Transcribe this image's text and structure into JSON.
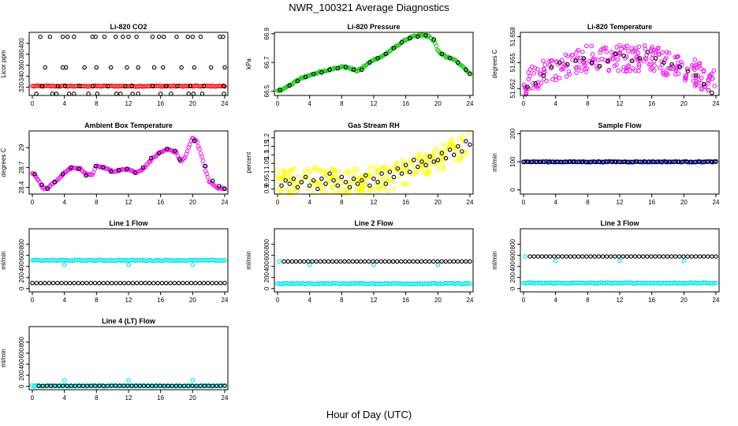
{
  "figure": {
    "title": "NWR_100321  Average Diagnostics",
    "xlabel": "Hour of Day (UTC)"
  },
  "chart_data": [
    {
      "type": "scatter",
      "title": "Li-820 CO2",
      "ylabel": "Licor ppm",
      "xlim": [
        0,
        24
      ],
      "ylim": [
        305,
        420
      ],
      "xticks": [
        0,
        4,
        8,
        12,
        16,
        20,
        24
      ],
      "yticks": [
        320,
        340,
        360,
        380,
        400
      ],
      "series": [
        {
          "color": "#ff0000",
          "style": "band",
          "x": [
            0,
            24
          ],
          "y": [
            322,
            322
          ]
        },
        {
          "color": "#000000",
          "style": "points",
          "x": [
            1.0,
            2.2,
            3.8,
            4.4,
            5.2,
            7.5,
            7.9,
            9.0,
            10.4,
            11.3,
            12.0,
            13.0,
            15.0,
            15.8,
            16.4,
            18.0,
            19.4,
            20.0,
            21.0,
            23.4,
            23.8
          ],
          "y": [
            412,
            412,
            412,
            412,
            412,
            412,
            412,
            412,
            412,
            412,
            412,
            412,
            412,
            412,
            412,
            412,
            412,
            412,
            412,
            412,
            412
          ]
        },
        {
          "color": "#000000",
          "style": "points",
          "x": [
            1.6,
            3.8,
            4.2,
            6.5,
            8.0,
            9.8,
            11.8,
            13.2,
            15.2,
            16.3,
            18.6,
            20.2,
            22.3,
            24.0
          ],
          "y": [
            356,
            356,
            356,
            356,
            356,
            356,
            356,
            356,
            356,
            356,
            356,
            356,
            356,
            356
          ]
        },
        {
          "color": "#000000",
          "style": "points",
          "x": [
            1.2,
            3.2,
            4.1,
            5.9,
            7.6,
            9.4,
            11.6,
            12.4,
            15.0,
            16.7,
            18.1,
            19.7,
            21.4,
            23.9
          ],
          "y": [
            322,
            322,
            322,
            322,
            322,
            322,
            322,
            322,
            322,
            322,
            322,
            322,
            322,
            322
          ]
        },
        {
          "color": "#000000",
          "style": "points",
          "x": [
            0.5,
            2.5,
            3.0,
            4.6,
            5.2,
            7.0,
            8.1,
            10.5,
            11.0,
            12.5,
            13.2,
            16.0,
            17.3,
            19.5,
            20.1,
            21.2,
            23.9
          ],
          "y": [
            308,
            308,
            308,
            308,
            308,
            308,
            308,
            308,
            308,
            308,
            308,
            308,
            308,
            308,
            308,
            308,
            308
          ]
        }
      ]
    },
    {
      "type": "scatter",
      "title": "Li-820 Pressure",
      "ylabel": "kPa",
      "xlim": [
        0,
        24
      ],
      "ylim": [
        66.47,
        66.91
      ],
      "xticks": [
        0,
        4,
        8,
        12,
        16,
        20,
        24
      ],
      "yticks": [
        66.5,
        66.7,
        66.9
      ],
      "series": [
        {
          "color": "#22cc22",
          "style": "curve",
          "x": [
            0,
            1,
            2,
            3,
            4,
            5,
            6,
            7,
            8,
            9,
            10,
            11,
            12,
            13,
            14,
            15,
            16,
            17,
            18,
            19,
            19.6,
            20,
            21,
            22,
            23,
            24
          ],
          "y": [
            66.5,
            66.52,
            66.56,
            66.59,
            66.61,
            66.63,
            66.64,
            66.66,
            66.67,
            66.66,
            66.64,
            66.68,
            66.72,
            66.74,
            66.78,
            66.82,
            66.86,
            66.88,
            66.89,
            66.88,
            66.84,
            66.78,
            66.74,
            66.72,
            66.68,
            66.62
          ]
        },
        {
          "color": "#000000",
          "style": "points",
          "x": [
            0.3,
            1.5,
            2.5,
            3.5,
            4.5,
            5.5,
            6.5,
            7.5,
            8.5,
            9.5,
            10.5,
            11.5,
            12.5,
            13.5,
            14.5,
            15.5,
            16.5,
            17.5,
            18.5,
            19.5,
            20.5,
            21.5,
            22.5,
            23.5,
            24.0
          ],
          "y": [
            66.51,
            66.54,
            66.57,
            66.6,
            66.62,
            66.63,
            66.65,
            66.66,
            66.67,
            66.65,
            66.65,
            66.7,
            66.73,
            66.76,
            66.8,
            66.84,
            66.87,
            66.88,
            66.89,
            66.86,
            66.76,
            66.73,
            66.7,
            66.65,
            66.62
          ]
        }
      ]
    },
    {
      "type": "scatter",
      "title": "Li-820 Temperature",
      "ylabel": "degrees C",
      "xlim": [
        0,
        24
      ],
      "ylim": [
        51.6512,
        51.6585
      ],
      "xticks": [
        0,
        4,
        8,
        12,
        16,
        20,
        24
      ],
      "yticks": [
        51.652,
        51.655,
        51.658
      ],
      "series": [
        {
          "color": "#ee22ee",
          "style": "noise",
          "x": [
            0,
            4,
            8,
            12,
            16,
            20,
            24
          ],
          "y": [
            51.6525,
            51.6545,
            51.6555,
            51.6555,
            51.6555,
            51.6545,
            51.6525
          ]
        },
        {
          "color": "#000000",
          "style": "points",
          "x": [
            0.5,
            1.5,
            2.5,
            3.5,
            4.5,
            5.5,
            6.5,
            7.5,
            8.5,
            9.5,
            10.5,
            11.5,
            12.5,
            13.5,
            14.5,
            15.5,
            16.5,
            17.5,
            18.5,
            19.5,
            20.5,
            21.5,
            22.5,
            23.5
          ],
          "y": [
            51.6522,
            51.6526,
            51.6535,
            51.6545,
            51.655,
            51.6548,
            51.6552,
            51.6555,
            51.655,
            51.6546,
            51.6552,
            51.656,
            51.6558,
            51.6552,
            51.6555,
            51.6562,
            51.6555,
            51.655,
            51.6548,
            51.6545,
            51.654,
            51.6535,
            51.6525,
            51.6515
          ]
        }
      ]
    },
    {
      "type": "scatter",
      "title": "Ambient Box Temperature",
      "ylabel": "degrees C",
      "xlim": [
        0,
        24
      ],
      "ylim": [
        28.3,
        29.25
      ],
      "xticks": [
        0,
        4,
        8,
        12,
        16,
        20,
        24
      ],
      "yticks": [
        28.4,
        28.7,
        29.0
      ],
      "series": [
        {
          "color": "#ee22ee",
          "style": "curve",
          "x": [
            0,
            0.5,
            1,
            1.5,
            2,
            3,
            4,
            5,
            6,
            7,
            7.5,
            8,
            9,
            10,
            11,
            12,
            13,
            14,
            15,
            16,
            17,
            18,
            18.5,
            19,
            19.5,
            20,
            20.5,
            21,
            21.5,
            22,
            23,
            24
          ],
          "y": [
            28.62,
            28.56,
            28.45,
            28.38,
            28.4,
            28.5,
            28.62,
            28.7,
            28.68,
            28.58,
            28.6,
            28.72,
            28.7,
            28.64,
            28.66,
            28.68,
            28.62,
            28.7,
            28.84,
            28.92,
            28.98,
            28.92,
            28.78,
            28.84,
            29.0,
            29.15,
            29.1,
            28.92,
            28.7,
            28.5,
            28.4,
            28.38
          ]
        },
        {
          "color": "#000000",
          "style": "points",
          "x": [
            0.3,
            1.2,
            1.9,
            2.8,
            3.8,
            4.8,
            5.8,
            6.7,
            7.9,
            8.8,
            9.8,
            10.8,
            11.8,
            12.8,
            13.8,
            14.8,
            15.8,
            16.8,
            17.8,
            18.4,
            20.2,
            21.6,
            22.5,
            23.3,
            24.0
          ],
          "y": [
            28.6,
            28.44,
            28.38,
            28.48,
            28.6,
            28.7,
            28.68,
            28.58,
            28.72,
            28.7,
            28.64,
            28.66,
            28.68,
            28.62,
            28.7,
            28.84,
            28.92,
            28.98,
            28.95,
            28.82,
            29.1,
            28.72,
            28.5,
            28.42,
            28.38
          ]
        }
      ]
    },
    {
      "type": "scatter",
      "title": "Gas Stream RH",
      "ylabel": "percent",
      "xlim": [
        0,
        24
      ],
      "ylim": [
        0.87,
        1.24
      ],
      "xticks": [
        0,
        4,
        8,
        12,
        16,
        20,
        24
      ],
      "yticks": [
        0.9,
        0.95,
        1.0,
        1.05,
        1.1,
        1.15,
        1.2
      ],
      "series": [
        {
          "color": "#ffff00",
          "style": "noise",
          "x": [
            0,
            4,
            8,
            12,
            14,
            16,
            18,
            20,
            22,
            24
          ],
          "y": [
            0.94,
            0.95,
            0.94,
            0.95,
            0.97,
            1.0,
            1.04,
            1.08,
            1.12,
            1.16
          ]
        },
        {
          "color": "#000000",
          "style": "points",
          "x": [
            0.5,
            1.0,
            1.5,
            2.0,
            2.5,
            3.0,
            3.5,
            4.0,
            4.5,
            5.0,
            5.5,
            6.0,
            6.5,
            7.0,
            7.5,
            8.0,
            8.5,
            9.0,
            9.5,
            10.0,
            10.5,
            11.0,
            11.5,
            12.0,
            12.5,
            13.0,
            13.5,
            14.0,
            14.5,
            15.0,
            15.5,
            16.0,
            16.5,
            17.0,
            17.5,
            18.0,
            18.5,
            19.0,
            19.5,
            20.0,
            20.5,
            21.0,
            21.5,
            22.0,
            22.5,
            23.0,
            23.5,
            24.0
          ],
          "y": [
            0.92,
            0.95,
            0.93,
            0.96,
            0.91,
            0.94,
            0.97,
            0.92,
            0.95,
            0.9,
            0.96,
            0.93,
            0.99,
            0.95,
            0.92,
            0.97,
            0.94,
            0.91,
            0.96,
            0.93,
            0.95,
            0.98,
            0.92,
            0.96,
            0.94,
            0.99,
            0.93,
            1.0,
            0.97,
            1.02,
            0.99,
            1.04,
            1.0,
            1.07,
            1.03,
            1.06,
            1.04,
            1.09,
            1.06,
            1.07,
            1.11,
            1.08,
            1.13,
            1.1,
            1.15,
            1.12,
            1.18,
            1.16
          ]
        }
      ]
    },
    {
      "type": "scatter",
      "title": "Sample Flow",
      "ylabel": "ml/min",
      "xlim": [
        0,
        24
      ],
      "ylim": [
        -15,
        210
      ],
      "xticks": [
        0,
        4,
        8,
        12,
        16,
        20,
        24
      ],
      "yticks": [
        0,
        100,
        200
      ],
      "series": [
        {
          "color": "#0000cc",
          "style": "band",
          "x": [
            0,
            24
          ],
          "y": [
            100,
            100
          ]
        },
        {
          "color": "#000000",
          "style": "points",
          "x": [
            0,
            24
          ],
          "y": [
            100,
            100
          ]
        }
      ]
    },
    {
      "type": "scatter",
      "title": "Line 1 Flow",
      "ylabel": "ml/min",
      "xlim": [
        0,
        24
      ],
      "ylim": [
        -60,
        1080
      ],
      "xticks": [
        0,
        4,
        8,
        12,
        16,
        20,
        24
      ],
      "yticks": [
        0,
        200,
        400,
        600,
        800
      ],
      "series": [
        {
          "color": "#00e5e5",
          "style": "band",
          "x": [
            0,
            24
          ],
          "y": [
            510,
            510
          ]
        },
        {
          "color": "#00e5e5",
          "style": "points",
          "x": [
            4,
            12,
            20
          ],
          "y": [
            430,
            430,
            430
          ]
        },
        {
          "color": "#000000",
          "style": "points",
          "x": [
            0,
            24
          ],
          "y": [
            100,
            100
          ]
        }
      ]
    },
    {
      "type": "scatter",
      "title": "Line 2 Flow",
      "ylabel": "ml/min",
      "xlim": [
        0,
        24
      ],
      "ylim": [
        -60,
        1080
      ],
      "xticks": [
        0,
        4,
        8,
        12,
        16,
        20,
        24
      ],
      "yticks": [
        0,
        200,
        400,
        600,
        800
      ],
      "series": [
        {
          "color": "#00e5e5",
          "style": "band",
          "x": [
            0,
            24
          ],
          "y": [
            90,
            90
          ]
        },
        {
          "color": "#00e5e5",
          "style": "points",
          "x": [
            0.2,
            4,
            12,
            20
          ],
          "y": [
            490,
            430,
            430,
            430
          ]
        },
        {
          "color": "#000000",
          "style": "points",
          "x": [
            0.8,
            24
          ],
          "y": [
            490,
            490
          ]
        }
      ]
    },
    {
      "type": "scatter",
      "title": "Line 3 Flow",
      "ylabel": "ml/min",
      "xlim": [
        0,
        24
      ],
      "ylim": [
        -60,
        1080
      ],
      "xticks": [
        0,
        4,
        8,
        12,
        16,
        20,
        24
      ],
      "yticks": [
        0,
        200,
        400,
        600,
        800
      ],
      "series": [
        {
          "color": "#00e5e5",
          "style": "band",
          "x": [
            0,
            24
          ],
          "y": [
            100,
            100
          ]
        },
        {
          "color": "#00e5e5",
          "style": "points",
          "x": [
            0.2,
            4,
            12,
            20
          ],
          "y": [
            580,
            500,
            500,
            500
          ]
        },
        {
          "color": "#000000",
          "style": "points",
          "x": [
            0.8,
            24
          ],
          "y": [
            580,
            580
          ]
        }
      ]
    },
    {
      "type": "scatter",
      "title": "Line 4 (LT) Flow",
      "ylabel": "ml/min",
      "xlim": [
        0,
        24
      ],
      "ylim": [
        -60,
        1080
      ],
      "xticks": [
        0,
        4,
        8,
        12,
        16,
        20,
        24
      ],
      "yticks": [
        0,
        200,
        400,
        600,
        800
      ],
      "series": [
        {
          "color": "#00e5e5",
          "style": "band",
          "x": [
            0,
            24
          ],
          "y": [
            10,
            10
          ]
        },
        {
          "color": "#00e5e5",
          "style": "points",
          "x": [
            4,
            12,
            20
          ],
          "y": [
            110,
            110,
            110
          ]
        },
        {
          "color": "#000000",
          "style": "points",
          "x": [
            0.8,
            24
          ],
          "y": [
            10,
            10
          ]
        }
      ]
    }
  ]
}
